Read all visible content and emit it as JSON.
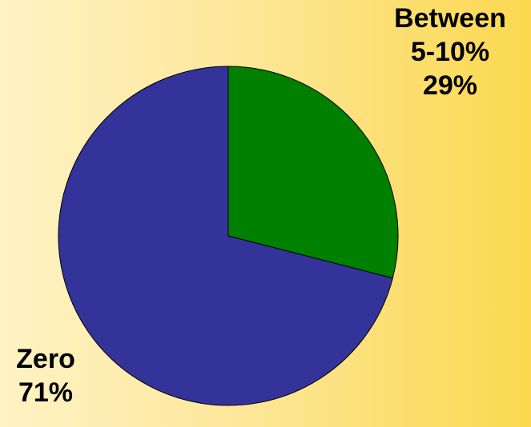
{
  "chart_data": {
    "type": "pie",
    "slices": [
      {
        "label": "Between 5-10%",
        "label_lines": [
          "Between",
          "5-10%"
        ],
        "value": 29,
        "value_label": "29%",
        "color": "#008000"
      },
      {
        "label": "Zero",
        "label_lines": [
          "Zero"
        ],
        "value": 71,
        "value_label": "71%",
        "color": "#333399"
      }
    ],
    "start_angle_deg": 0,
    "direction": "clockwise",
    "legend": "none",
    "title": ""
  },
  "colors": {
    "background_left": "#fff3c4",
    "background_right": "#fbd84f",
    "outline": "#000000"
  }
}
